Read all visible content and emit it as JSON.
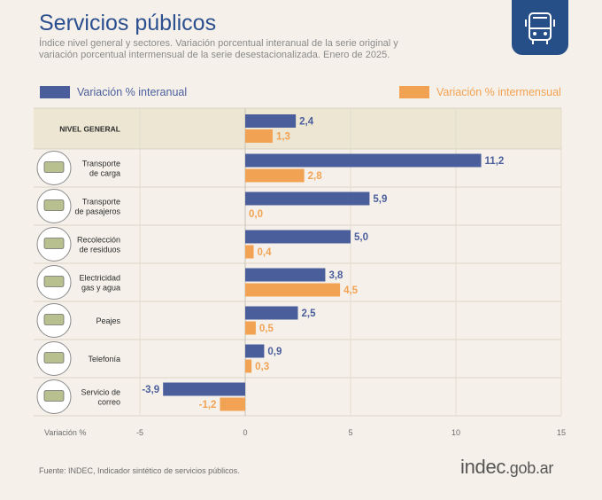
{
  "header": {
    "title": "Servicios públicos",
    "subtitle": "Índice nivel general y sectores. Variación porcentual interanual de la serie original y variación porcentual intermensual de la serie desestacionalizada. Enero de 2025."
  },
  "colors": {
    "interanual": "#4b5e9c",
    "intermensual": "#f2a253",
    "title": "#2c4f8f",
    "badge": "#264e87"
  },
  "icons": {
    "badge": "bus-icon",
    "rows": [
      "truck-icon",
      "bus-icon",
      "recycle-bin-icon",
      "hydrant-icon",
      "toll-barrier-icon",
      "antenna-icon",
      "package-icon"
    ]
  },
  "chart_data": {
    "type": "bar",
    "orientation": "horizontal",
    "categories": [
      "NIVEL GENERAL",
      "Transporte de carga",
      "Transporte de pasajeros",
      "Recolección de residuos",
      "Electricidad gas y agua",
      "Peajes",
      "Telefonía",
      "Servicio de correo"
    ],
    "category_lines": [
      [
        "NIVEL GENERAL"
      ],
      [
        "Transporte",
        "de carga"
      ],
      [
        "Transporte",
        "de pasajeros"
      ],
      [
        "Recolección",
        "de residuos"
      ],
      [
        "Electricidad",
        "gas y agua"
      ],
      [
        "Peajes"
      ],
      [
        "Telefonía"
      ],
      [
        "Servicio de",
        "correo"
      ]
    ],
    "series": [
      {
        "name": "Variación % interanual",
        "values": [
          2.4,
          11.2,
          5.9,
          5.0,
          3.8,
          2.5,
          0.9,
          -3.9
        ],
        "labels": [
          "2,4",
          "11,2",
          "5,9",
          "5,0",
          "3,8",
          "2,5",
          "0,9",
          "-3,9"
        ]
      },
      {
        "name": "Variación % intermensual",
        "values": [
          1.3,
          2.8,
          0.0,
          0.4,
          4.5,
          0.5,
          0.3,
          -1.2
        ],
        "labels": [
          "1,3",
          "2,8",
          "0,0",
          "0,4",
          "4,5",
          "0,5",
          "0,3",
          "-1,2"
        ]
      }
    ],
    "xlabel": "Variación %",
    "xlim": [
      -5,
      15
    ],
    "xticks": [
      -5,
      0,
      5,
      10,
      15
    ],
    "grid": true,
    "legend_position": "top"
  },
  "footer": {
    "source": "Fuente: INDEC, Indicador sintético de servicios públicos.",
    "logo_main": "indec",
    "logo_tld": ".gob.ar"
  }
}
